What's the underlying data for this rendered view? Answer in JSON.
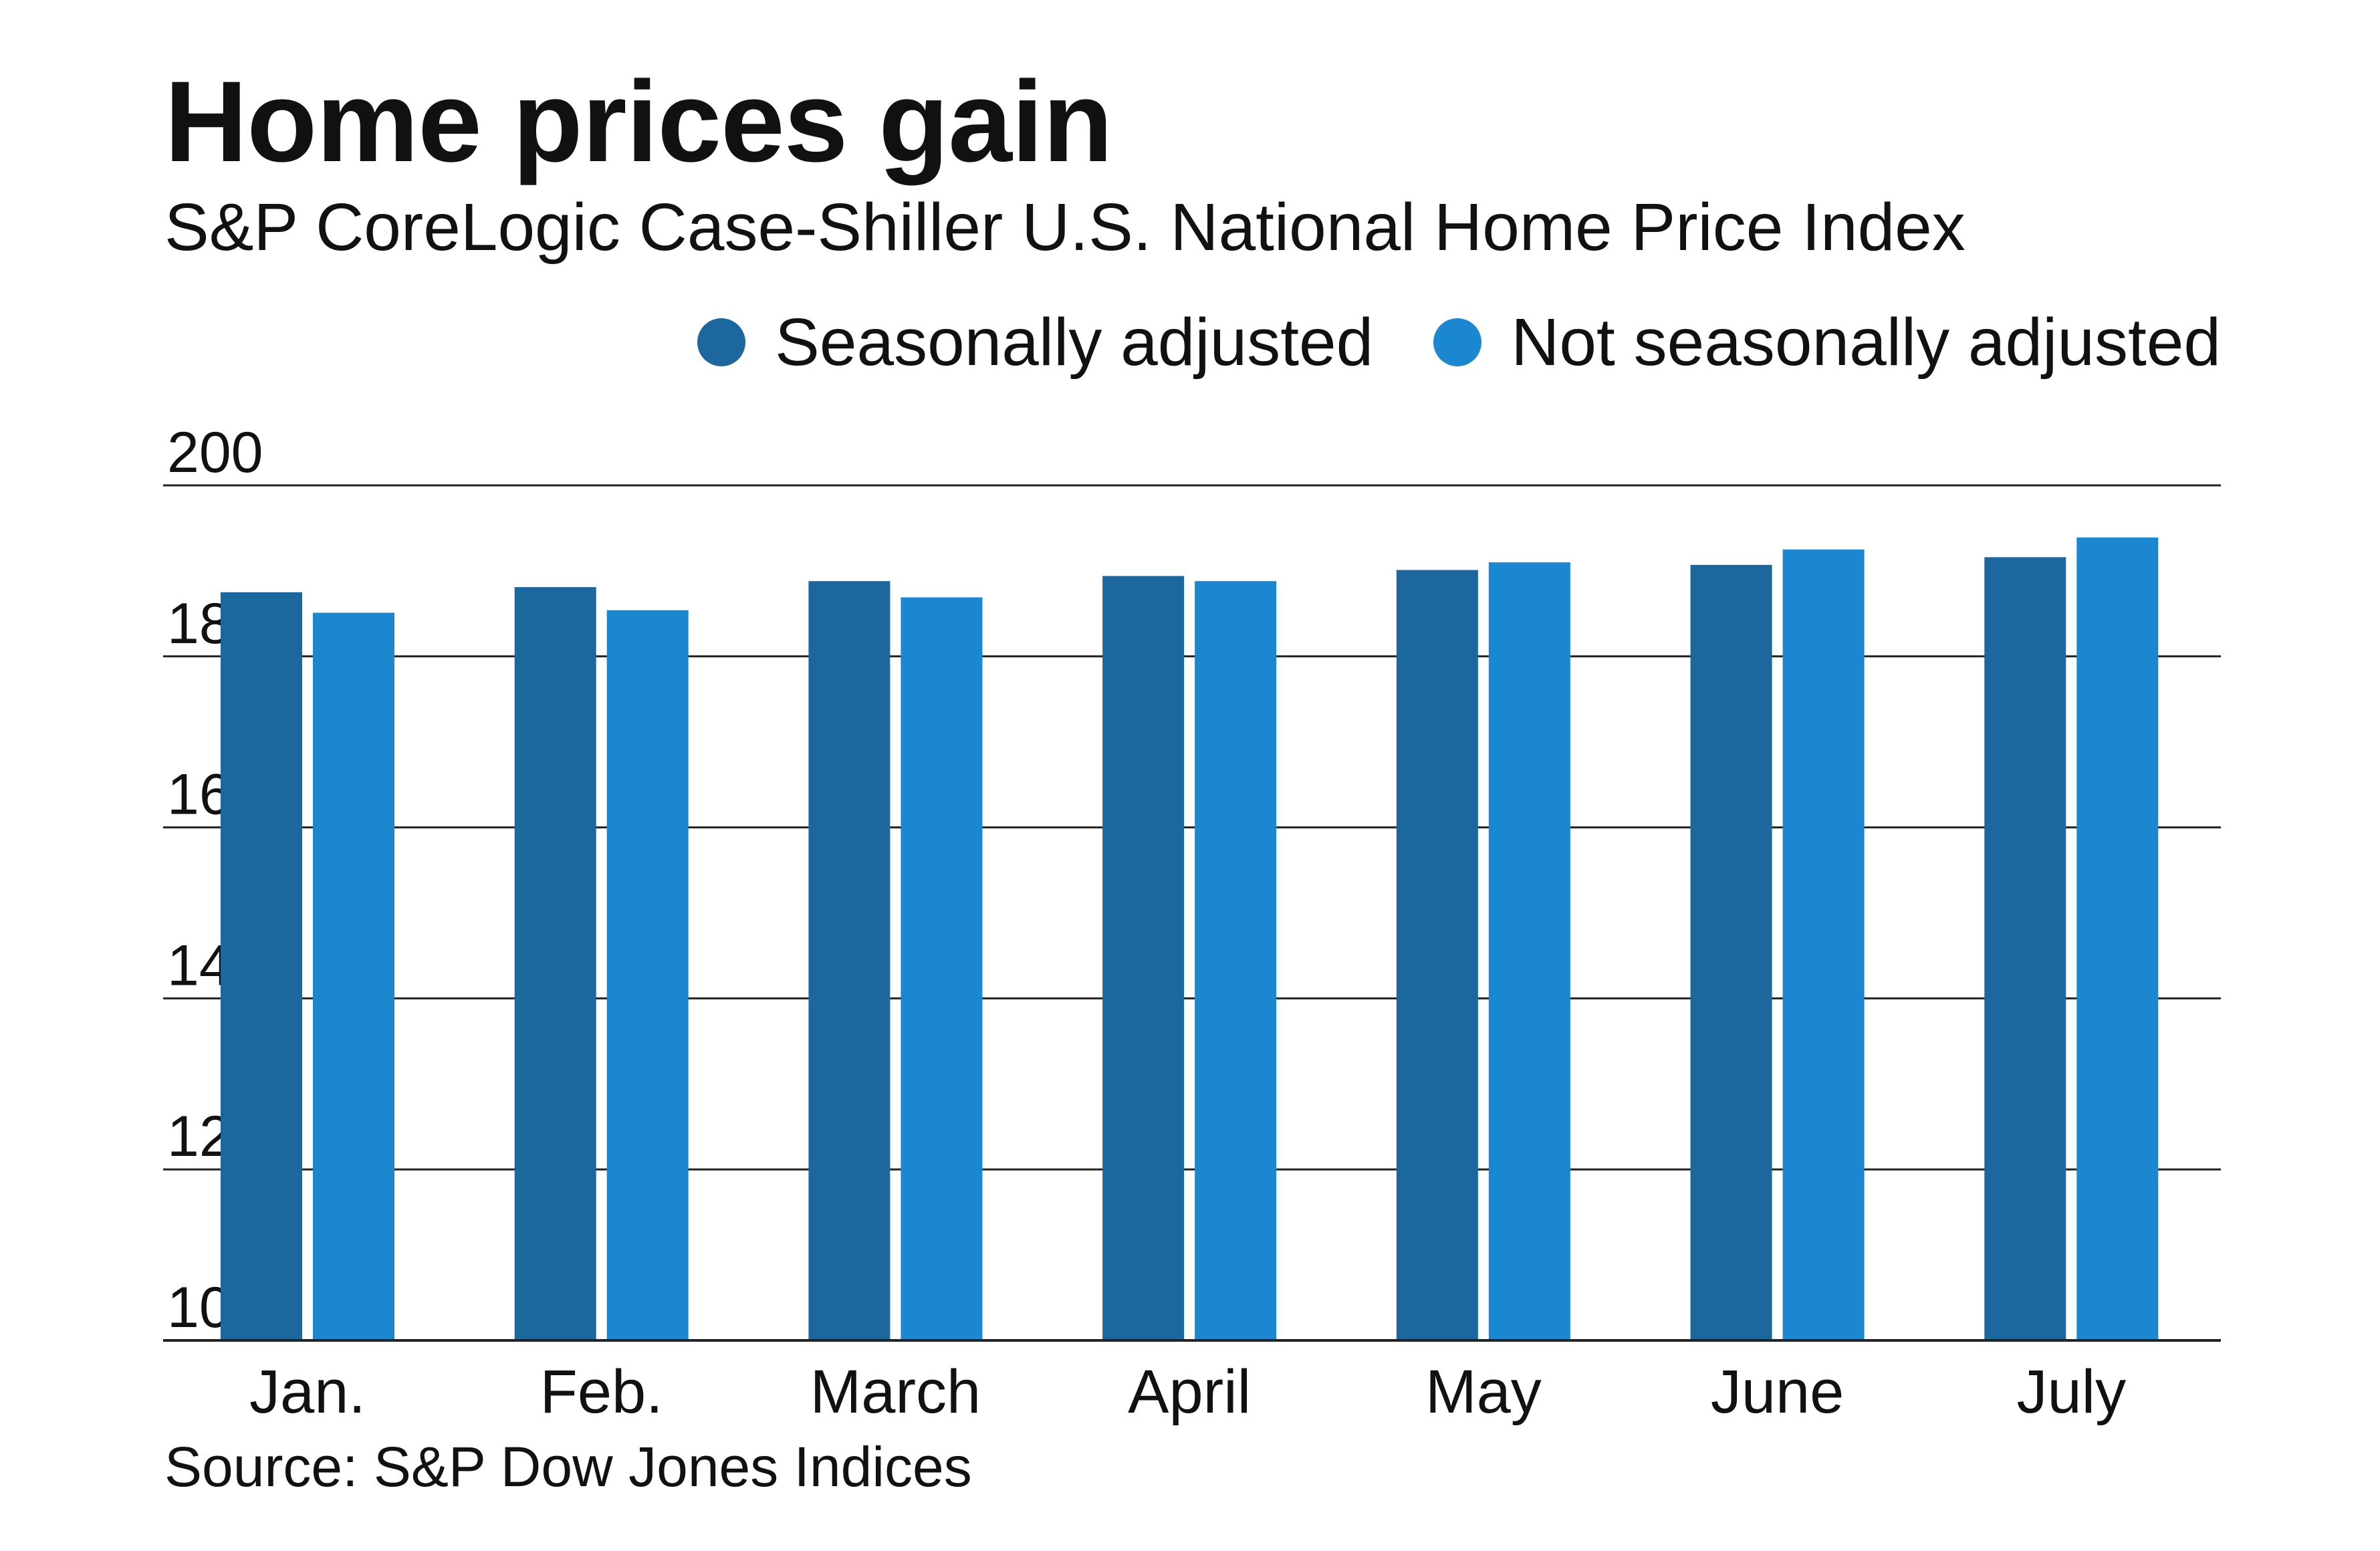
{
  "title": "Home prices gain",
  "subtitle": "S&P CoreLogic Case-Shiller U.S. National Home Price Index",
  "source": "Source: S&P Dow Jones Indices",
  "colors": {
    "seasonally_adjusted": "#1b679e",
    "not_seasonally_adjusted": "#1b87d0",
    "gridline": "#222222"
  },
  "chart_data": {
    "type": "bar",
    "title": "Home prices gain",
    "subtitle": "S&P CoreLogic Case-Shiller U.S. National Home Price Index",
    "categories": [
      "Jan.",
      "Feb.",
      "March",
      "April",
      "May",
      "June",
      "July"
    ],
    "series": [
      {
        "name": "Seasonally adjusted",
        "values": [
          187.5,
          188.1,
          188.8,
          189.4,
          190.1,
          190.7,
          191.6
        ]
      },
      {
        "name": "Not seasonally adjusted",
        "values": [
          185.1,
          185.4,
          186.9,
          188.8,
          191.0,
          192.5,
          193.9
        ]
      }
    ],
    "ylim": [
      100,
      200
    ],
    "yticks": [
      100,
      120,
      140,
      160,
      180,
      200
    ],
    "grid": true,
    "legend_position": "top-right"
  }
}
